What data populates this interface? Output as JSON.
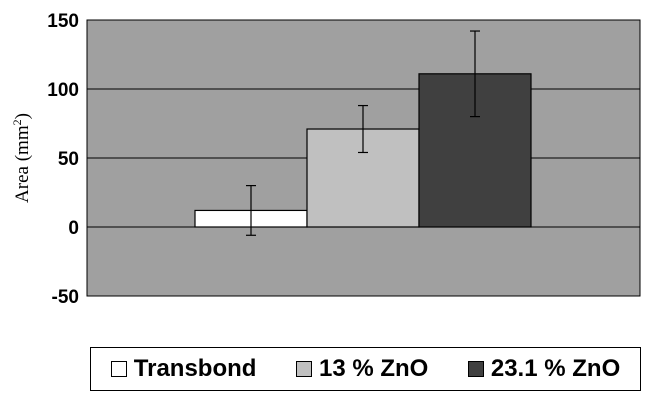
{
  "chart_data": {
    "type": "bar",
    "categories": [
      ""
    ],
    "series": [
      {
        "name": "Transbond",
        "values": [
          12
        ],
        "error": [
          18
        ],
        "color": "#ffffff"
      },
      {
        "name": "13 % ZnO",
        "values": [
          71
        ],
        "error": [
          17
        ],
        "color": "#c0c0c0"
      },
      {
        "name": "23.1 % ZnO",
        "values": [
          111
        ],
        "error": [
          31
        ],
        "color": "#404040"
      }
    ],
    "ylabel_text": "Area (mm",
    "ylabel_sup": "2",
    "ylabel_close": ")",
    "ylim": [
      -50,
      150
    ],
    "yticks": [
      "-50",
      "0",
      "50",
      "100",
      "150"
    ],
    "ytick_values": [
      -50,
      0,
      50,
      100,
      150
    ],
    "grid": true,
    "plot_background": "#a0a0a0",
    "legend_position": "bottom"
  }
}
